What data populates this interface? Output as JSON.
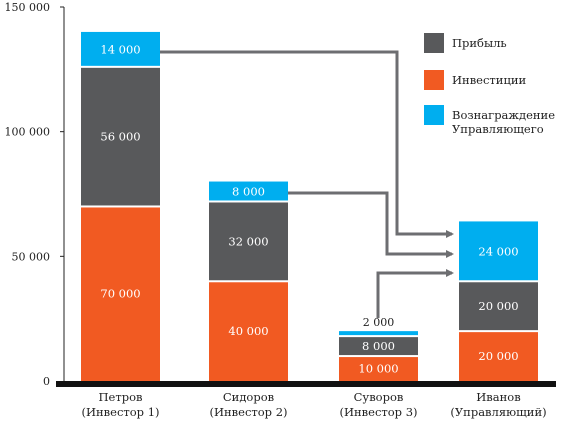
{
  "chart_data": {
    "type": "bar",
    "stacked": true,
    "categories": [
      {
        "line1": "Петров",
        "line2": "(Инвестор 1)"
      },
      {
        "line1": "Сидоров",
        "line2": "(Инвестор 2)"
      },
      {
        "line1": "Суворов",
        "line2": "(Инвестор 3)"
      },
      {
        "line1": "Иванов",
        "line2": "(Управляющий)"
      }
    ],
    "series": [
      {
        "name": "Инвестиции",
        "color": "#f15a22",
        "values": [
          70000,
          40000,
          10000,
          20000
        ],
        "labels": [
          "70 000",
          "40 000",
          "10 000",
          "20 000"
        ]
      },
      {
        "name": "Прибыль",
        "color": "#58595b",
        "values": [
          56000,
          32000,
          8000,
          20000
        ],
        "labels": [
          "56 000",
          "32 000",
          "8 000",
          "20 000"
        ]
      },
      {
        "name": "Вознаграждение Управляющего",
        "color": "#00aeef",
        "values": [
          14000,
          8000,
          2000,
          24000
        ],
        "labels": [
          "14 000",
          "8 000",
          "2 000",
          "24 000"
        ]
      }
    ],
    "yticks": [
      {
        "value": 0,
        "label": "0"
      },
      {
        "value": 50000,
        "label": "50 000"
      },
      {
        "value": 100000,
        "label": "100 000"
      },
      {
        "value": 150000,
        "label": "150 000"
      }
    ],
    "ylim": [
      0,
      150000
    ],
    "legend": {
      "placement": "top-right",
      "items": [
        {
          "series": 1,
          "lines": [
            "Прибыль"
          ]
        },
        {
          "series": 0,
          "lines": [
            "Инвестиции"
          ]
        },
        {
          "series": 2,
          "lines": [
            "Вознаграждение",
            "Управляющего"
          ]
        }
      ]
    },
    "arrows": [
      {
        "from": "Петров",
        "to": "Иванов"
      },
      {
        "from": "Сидоров",
        "to": "Иванов"
      },
      {
        "from": "Суворов",
        "to": "Иванов"
      }
    ]
  }
}
